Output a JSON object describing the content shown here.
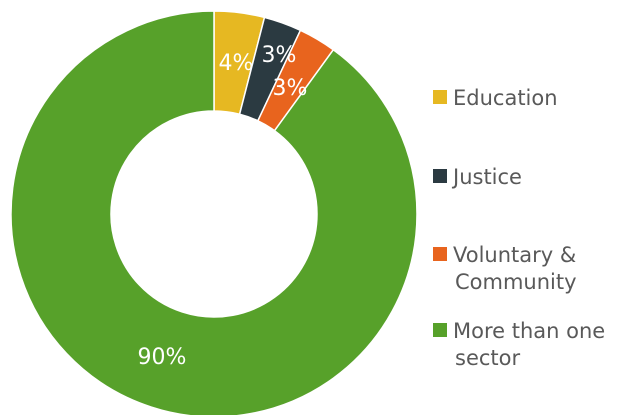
{
  "chart_data": {
    "type": "pie",
    "title": "",
    "donut": true,
    "categories": [
      "Education",
      "Justice",
      "Voluntary & Community",
      "More than one sector"
    ],
    "legend_lines": [
      [
        "Education"
      ],
      [
        "Justice"
      ],
      [
        "Voluntary &",
        "Community"
      ],
      [
        "More than one",
        "sector"
      ]
    ],
    "values": [
      4,
      3,
      3,
      90
    ],
    "data_labels": [
      "4%",
      "3%",
      "3%",
      "90%"
    ],
    "colors": [
      "#e6b822",
      "#2b3a41",
      "#e8641e",
      "#57a12a"
    ],
    "legend_position": "right"
  }
}
